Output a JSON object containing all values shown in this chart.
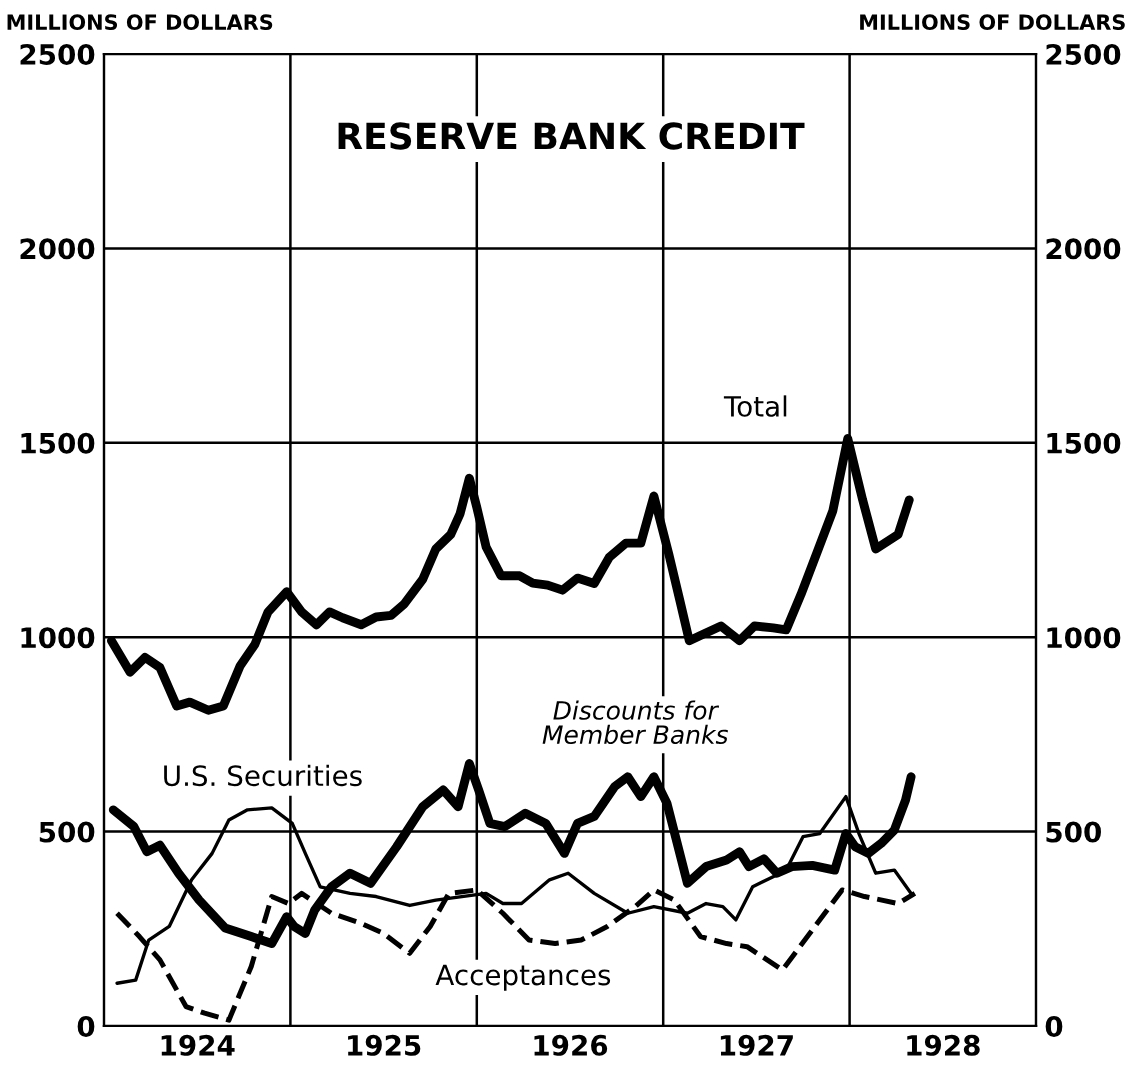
{
  "chart_data": {
    "type": "line",
    "title": "RESERVE BANK CREDIT",
    "ylabel": "MILLIONS OF DOLLARS",
    "y2label": "MILLIONS OF DOLLARS",
    "xlim": [
      1924,
      1929
    ],
    "xticks": [
      {
        "value": 1924.5,
        "label": "1924"
      },
      {
        "value": 1925.5,
        "label": "1925"
      },
      {
        "value": 1926.5,
        "label": "1926"
      },
      {
        "value": 1927.5,
        "label": "1927"
      },
      {
        "value": 1928.5,
        "label": "1928"
      }
    ],
    "ylim": [
      0,
      2500
    ],
    "yticks": [
      0,
      500,
      1000,
      1500,
      2000,
      2500
    ],
    "y2lim": [
      0,
      2500
    ],
    "y2ticks": [
      0,
      500,
      1000,
      1500,
      2000,
      2500
    ],
    "grid": "y",
    "legend": false,
    "marker": "none",
    "ref_lines": [
      {
        "axis": "x",
        "value": 1925
      },
      {
        "axis": "x",
        "value": 1926
      },
      {
        "axis": "x",
        "value": 1927
      },
      {
        "axis": "x",
        "value": 1928
      }
    ],
    "series": [
      {
        "name": "Total",
        "color": "#000000",
        "line_style": "solid",
        "x": [
          1924.04,
          1924.14,
          1924.22,
          1924.3,
          1924.39,
          1924.46,
          1924.56,
          1924.64,
          1924.73,
          1924.81,
          1924.88,
          1924.98,
          1925.06,
          1925.14,
          1925.21,
          1925.28,
          1925.38,
          1925.46,
          1925.54,
          1925.61,
          1925.71,
          1925.78,
          1925.86,
          1925.91,
          1925.96,
          1926.0,
          1926.05,
          1926.13,
          1926.23,
          1926.3,
          1926.38,
          1926.46,
          1926.54,
          1926.63,
          1926.71,
          1926.8,
          1926.88,
          1926.95,
          1927.03,
          1927.09,
          1927.14,
          1927.22,
          1927.31,
          1927.41,
          1927.49,
          1927.59,
          1927.66,
          1927.74,
          1927.83,
          1927.91,
          1927.99,
          1928.07,
          1928.14,
          1928.26,
          1928.32
        ],
        "values": [
          991,
          910,
          948,
          922,
          823,
          833,
          812,
          823,
          926,
          982,
          1065,
          1117,
          1065,
          1032,
          1065,
          1050,
          1032,
          1052,
          1056,
          1085,
          1149,
          1227,
          1264,
          1317,
          1409,
          1334,
          1232,
          1158,
          1158,
          1139,
          1134,
          1121,
          1152,
          1138,
          1205,
          1242,
          1242,
          1363,
          1214,
          1093,
          991,
          1009,
          1029,
          991,
          1029,
          1024,
          1019,
          1111,
          1224,
          1325,
          1511,
          1353,
          1227,
          1264,
          1353
        ]
      },
      {
        "name": "Discounts for\nMember Banks",
        "color": "#000000",
        "line_style": "solid",
        "x": [
          1924.05,
          1924.16,
          1924.23,
          1924.3,
          1924.4,
          1924.51,
          1924.65,
          1924.79,
          1924.9,
          1924.98,
          1925.02,
          1925.08,
          1925.13,
          1925.22,
          1925.32,
          1925.43,
          1925.57,
          1925.71,
          1925.82,
          1925.9,
          1925.96,
          1926.01,
          1926.07,
          1926.15,
          1926.26,
          1926.37,
          1926.47,
          1926.54,
          1926.63,
          1926.74,
          1926.81,
          1926.88,
          1926.95,
          1927.02,
          1927.13,
          1927.23,
          1927.34,
          1927.41,
          1927.46,
          1927.54,
          1927.61,
          1927.69,
          1927.8,
          1927.92,
          1927.98,
          1928.03,
          1928.1,
          1928.17,
          1928.24,
          1928.3,
          1928.33
        ],
        "values": [
          556,
          513,
          448,
          465,
          393,
          324,
          252,
          230,
          212,
          281,
          256,
          238,
          298,
          358,
          393,
          367,
          461,
          564,
          607,
          564,
          675,
          607,
          521,
          513,
          547,
          521,
          444,
          521,
          539,
          616,
          641,
          590,
          641,
          573,
          367,
          410,
          427,
          448,
          410,
          430,
          393,
          410,
          413,
          401,
          495,
          461,
          444,
          470,
          504,
          581,
          641
        ]
      },
      {
        "name": "U.S. Securities",
        "color": "#000000",
        "line_style": "solid",
        "x": [
          1924.07,
          1924.17,
          1924.24,
          1924.35,
          1924.47,
          1924.58,
          1924.67,
          1924.77,
          1924.9,
          1925.01,
          1925.08,
          1925.16,
          1925.32,
          1925.46,
          1925.64,
          1925.78,
          1925.92,
          1926.05,
          1926.14,
          1926.24,
          1926.39,
          1926.49,
          1926.63,
          1926.81,
          1926.95,
          1927.13,
          1927.23,
          1927.32,
          1927.39,
          1927.48,
          1927.59,
          1927.66,
          1927.75,
          1927.84,
          1927.98,
          1928.05,
          1928.14,
          1928.24,
          1928.33
        ],
        "values": [
          110,
          118,
          221,
          256,
          376,
          444,
          530,
          556,
          561,
          521,
          444,
          358,
          341,
          333,
          310,
          324,
          333,
          341,
          315,
          315,
          376,
          393,
          341,
          290,
          307,
          290,
          315,
          307,
          273,
          358,
          384,
          401,
          487,
          495,
          590,
          495,
          393,
          401,
          341
        ]
      },
      {
        "name": "Acceptances",
        "color": "#000000",
        "line_style": "dashed",
        "x": [
          1924.07,
          1924.19,
          1924.3,
          1924.44,
          1924.54,
          1924.67,
          1924.79,
          1924.9,
          1924.99,
          1925.06,
          1925.22,
          1925.38,
          1925.5,
          1925.64,
          1925.75,
          1925.85,
          1926.0,
          1926.14,
          1926.28,
          1926.42,
          1926.56,
          1926.7,
          1926.85,
          1926.95,
          1927.06,
          1927.2,
          1927.34,
          1927.45,
          1927.64,
          1927.8,
          1927.96,
          1928.08,
          1928.26,
          1928.35
        ],
        "values": [
          290,
          230,
          170,
          50,
          33,
          15,
          153,
          333,
          315,
          341,
          290,
          264,
          238,
          187,
          256,
          341,
          350,
          290,
          221,
          212,
          221,
          256,
          307,
          350,
          324,
          230,
          212,
          204,
          144,
          247,
          350,
          333,
          315,
          341
        ]
      }
    ]
  }
}
